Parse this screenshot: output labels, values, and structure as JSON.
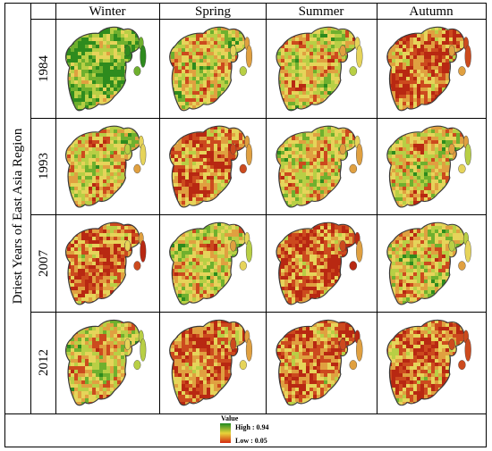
{
  "figure": {
    "row_axis_title": "Driest Years of  East Asia Region",
    "columns": [
      "Winter",
      "Spring",
      "Summer",
      "Autumn"
    ],
    "rows": [
      "1984",
      "1993",
      "2007",
      "2012"
    ],
    "panel_dominance": [
      [
        "green",
        "mixed",
        "mixed",
        "red"
      ],
      [
        "mixed",
        "red",
        "mixed",
        "mixed"
      ],
      [
        "red",
        "mixed",
        "red",
        "mixed"
      ],
      [
        "mixed",
        "red",
        "red",
        "red"
      ]
    ]
  },
  "legend": {
    "title": "Value",
    "high_label": "High : 0.94",
    "low_label": "Low : 0.05",
    "colors": {
      "high": "#1f8a1f",
      "mid": "#e8d43a",
      "low": "#d42a10"
    }
  },
  "map_palette": [
    "#2e8b1e",
    "#6fb02e",
    "#b8cf45",
    "#e6d45a",
    "#e0a040",
    "#cc4a1e",
    "#b82812"
  ],
  "ocean_color": "#ffffff",
  "frame_color": "#000000"
}
